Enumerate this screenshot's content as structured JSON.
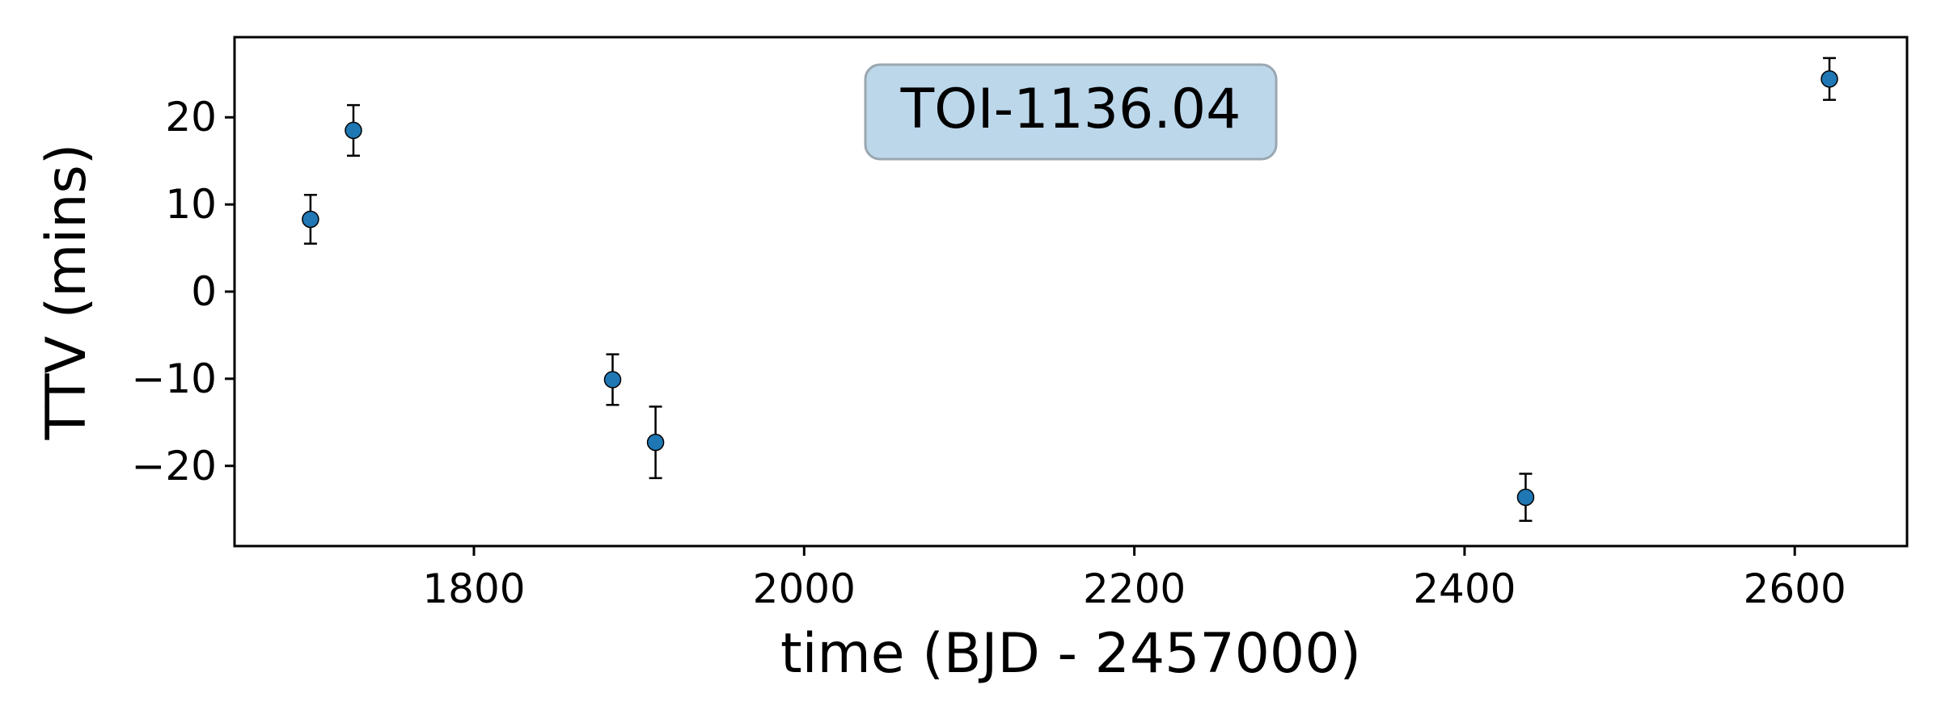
{
  "chart_data": {
    "type": "scatter",
    "title": "TOI-1136.04",
    "xlabel": "time (BJD - 2457000)",
    "ylabel": "TTV (mins)",
    "xlim": [
      1655,
      2668
    ],
    "ylim": [
      -29.2,
      29.2
    ],
    "xticks": [
      1800,
      2000,
      2200,
      2400,
      2600
    ],
    "yticks": [
      -20,
      -10,
      0,
      10,
      20
    ],
    "ytick_labels": [
      "−20",
      "−10",
      "0",
      "10",
      "20"
    ],
    "xtick_labels": [
      "1800",
      "2000",
      "2200",
      "2400",
      "2600"
    ],
    "grid": false,
    "marker_color": "#1f77b4",
    "errorbar_color": "#000000",
    "title_box_color": "#bcd7ea",
    "title_box_edge": "#9aa7b0",
    "points": [
      {
        "x": 1701,
        "y": 8.3,
        "yerr": 2.8
      },
      {
        "x": 1727,
        "y": 18.5,
        "yerr": 2.9
      },
      {
        "x": 1884,
        "y": -10.1,
        "yerr": 2.9
      },
      {
        "x": 1910,
        "y": -17.3,
        "yerr": 4.1
      },
      {
        "x": 2437,
        "y": -23.6,
        "yerr": 2.7
      },
      {
        "x": 2621,
        "y": 24.4,
        "yerr": 2.4
      }
    ]
  }
}
